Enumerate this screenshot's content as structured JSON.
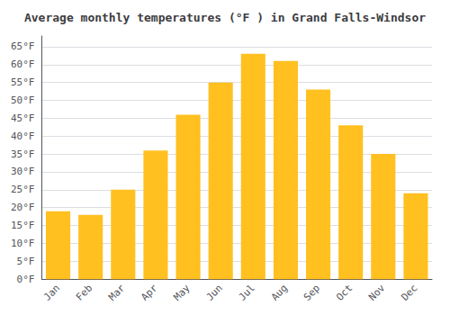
{
  "chart_data": {
    "type": "bar",
    "title": "Average monthly temperatures (°F ) in Grand Falls-Windsor",
    "categories": [
      "Jan",
      "Feb",
      "Mar",
      "Apr",
      "May",
      "Jun",
      "Jul",
      "Aug",
      "Sep",
      "Oct",
      "Nov",
      "Dec"
    ],
    "values": [
      19,
      18,
      25,
      36,
      46,
      55,
      63,
      61,
      53,
      43,
      35,
      24
    ],
    "color": "#FFC020",
    "ylim": [
      0,
      68
    ],
    "yticks": [
      {
        "value": 0,
        "label": "0°F"
      },
      {
        "value": 5,
        "label": "5°F"
      },
      {
        "value": 10,
        "label": "10°F"
      },
      {
        "value": 15,
        "label": "15°F"
      },
      {
        "value": 20,
        "label": "20°F"
      },
      {
        "value": 25,
        "label": "25°F"
      },
      {
        "value": 30,
        "label": "30°F"
      },
      {
        "value": 35,
        "label": "35°F"
      },
      {
        "value": 40,
        "label": "40°F"
      },
      {
        "value": 45,
        "label": "45°F"
      },
      {
        "value": 50,
        "label": "50°F"
      },
      {
        "value": 55,
        "label": "55°F"
      },
      {
        "value": 60,
        "label": "60°F"
      },
      {
        "value": 65,
        "label": "65°F"
      }
    ],
    "grid": true
  }
}
